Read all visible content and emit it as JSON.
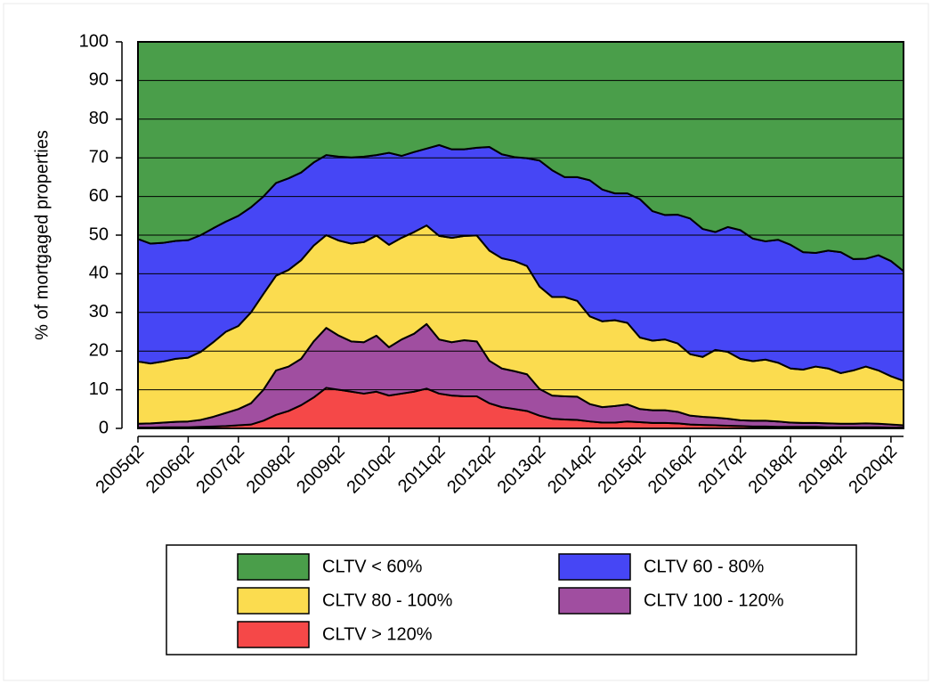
{
  "chart_data": {
    "type": "stacked_area",
    "y_label": "% of mortgaged properties",
    "categories": [
      "2005q2",
      null,
      null,
      null,
      "2006q2",
      null,
      null,
      null,
      "2007q2",
      null,
      null,
      null,
      "2008q2",
      null,
      null,
      null,
      "2009q2",
      null,
      null,
      null,
      "2010q2",
      null,
      null,
      null,
      "2011q2",
      null,
      null,
      null,
      "2012q2",
      null,
      null,
      null,
      "2013q2",
      null,
      null,
      null,
      "2014q2",
      null,
      null,
      null,
      "2015q2",
      null,
      null,
      null,
      "2016q2",
      null,
      null,
      null,
      "2017q2",
      null,
      null,
      null,
      "2018q2",
      null,
      null,
      null,
      "2019q2",
      null,
      null,
      null,
      "2020q2",
      null
    ],
    "series": [
      {
        "name": "CLTV < 60%",
        "color": "#4a9e4a",
        "values": [
          51,
          52.2,
          52,
          51.5,
          51.3,
          50,
          48.2,
          46.5,
          45,
          42.8,
          40,
          36.5,
          35.3,
          33.8,
          31.2,
          29.3,
          29.7,
          29.9,
          29.7,
          29.3,
          28.7,
          29.5,
          28.5,
          27.6,
          26.7,
          27.8,
          27.8,
          27.4,
          27.2,
          29.1,
          29.8,
          30.1,
          30.7,
          33.2,
          35,
          35,
          35.8,
          38.2,
          39.2,
          39.2,
          40.7,
          43.8,
          44.8,
          44.7,
          45.7,
          48.4,
          49.2,
          47.9,
          48.7,
          50.9,
          51.6,
          51.2,
          52.5,
          54.4,
          54.6,
          54,
          54.4,
          56.2,
          56.1,
          55.2,
          56.7,
          59.3
        ]
      },
      {
        "name": "CLTV 60 - 80%",
        "color": "#4646f5",
        "values": [
          31.7,
          31,
          30.7,
          30.5,
          30.4,
          30.2,
          29.5,
          28.5,
          28.5,
          27.2,
          25.2,
          24,
          23.7,
          22.7,
          21.5,
          20.7,
          21.7,
          22.3,
          22.1,
          20.8,
          23.8,
          21.2,
          20.7,
          19.9,
          23.5,
          22.9,
          22.4,
          22.7,
          26.8,
          26.9,
          26.9,
          27.9,
          32.6,
          32.8,
          31,
          32,
          35.2,
          34.1,
          32.8,
          33.5,
          35.8,
          33.5,
          32.2,
          33.3,
          35.1,
          33.1,
          30.5,
          32.3,
          33.3,
          31.7,
          30.6,
          31.8,
          32,
          30.4,
          29.4,
          30.5,
          31.3,
          28.8,
          27.9,
          29.8,
          29.8,
          28.4
        ]
      },
      {
        "name": "CLTV 80 - 100%",
        "color": "#fbdc4f",
        "values": [
          16.1,
          15.5,
          15.8,
          16.3,
          16.5,
          17.6,
          19.3,
          21,
          21.5,
          23.5,
          24.8,
          24.5,
          25,
          25.5,
          24.8,
          24,
          24.6,
          25.3,
          25.9,
          25.9,
          26.5,
          26.3,
          26.3,
          25.5,
          26.8,
          27,
          27,
          27.4,
          28.5,
          28.5,
          28.5,
          28,
          26.5,
          25.5,
          25.7,
          24.8,
          22.7,
          22.2,
          22.2,
          21.1,
          18.5,
          18,
          18.3,
          17.7,
          15.9,
          15.5,
          17.5,
          17.3,
          15.9,
          15.4,
          15.8,
          15.2,
          14,
          13.8,
          14.6,
          14.2,
          13.1,
          13.8,
          14.7,
          13.8,
          12.5,
          11.5
        ]
      },
      {
        "name": "CLTV 100 - 120%",
        "color": "#a04ea0",
        "values": [
          1.0,
          1.1,
          1.2,
          1.4,
          1.5,
          1.8,
          2.5,
          3.4,
          4.2,
          5.5,
          8,
          11.5,
          11.5,
          12,
          14.5,
          15.5,
          14,
          13,
          13.3,
          14.5,
          12.5,
          14,
          15,
          16.7,
          14,
          13.8,
          14.5,
          14.2,
          11,
          10,
          9.8,
          9.5,
          6.9,
          6,
          6,
          6,
          4.5,
          4,
          4.3,
          4.4,
          3.4,
          3.3,
          3.3,
          3,
          2.3,
          2.1,
          2,
          1.8,
          1.5,
          1.5,
          1.5,
          1.4,
          1.1,
          1,
          1,
          1,
          0.9,
          0.9,
          1,
          0.9,
          0.8,
          0.6
        ]
      },
      {
        "name": "CLTV > 120%",
        "color": "#f54848",
        "values": [
          0.2,
          0.2,
          0.3,
          0.3,
          0.3,
          0.4,
          0.5,
          0.6,
          0.8,
          1,
          2,
          3.5,
          4.5,
          6,
          8,
          10.5,
          10,
          9.5,
          9,
          9.5,
          8.5,
          9,
          9.5,
          10.3,
          9,
          8.5,
          8.3,
          8.3,
          6.5,
          5.5,
          5,
          4.5,
          3.3,
          2.5,
          2.3,
          2.2,
          1.8,
          1.5,
          1.5,
          1.8,
          1.6,
          1.4,
          1.4,
          1.3,
          1,
          0.9,
          0.8,
          0.7,
          0.6,
          0.5,
          0.5,
          0.4,
          0.4,
          0.4,
          0.4,
          0.3,
          0.3,
          0.3,
          0.3,
          0.3,
          0.2,
          0.2
        ]
      }
    ],
    "ylim": [
      0,
      100
    ],
    "yticks": [
      0,
      10,
      20,
      30,
      40,
      50,
      60,
      70,
      80,
      90,
      100
    ],
    "grid": true,
    "legend": "bottom"
  }
}
